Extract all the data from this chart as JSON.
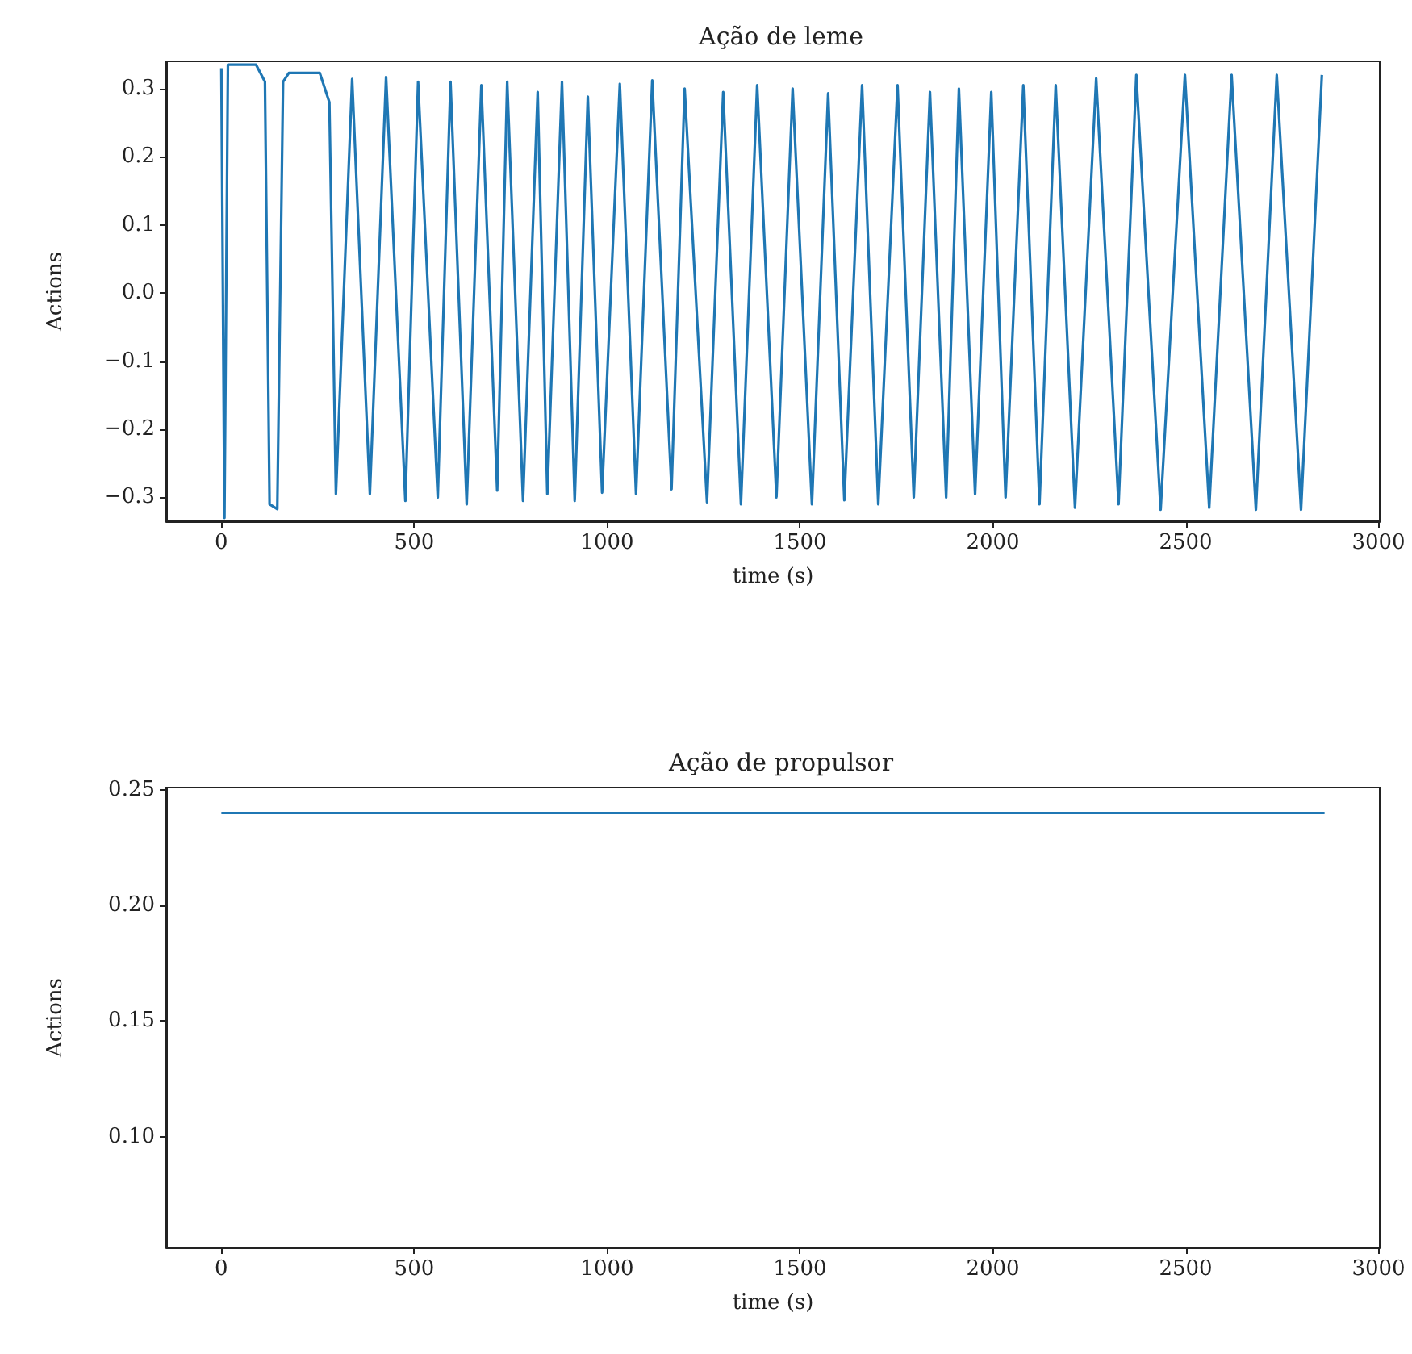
{
  "chart_data": [
    {
      "type": "line",
      "title": "Ação de leme",
      "xlabel": "time (s)",
      "ylabel": "Actions",
      "xlim": [
        -143,
        3003
      ],
      "ylim": [
        -0.335,
        0.34
      ],
      "xticks": [
        0,
        500,
        1000,
        1500,
        2000,
        2500,
        3000
      ],
      "yticks": [
        {
          "value": -0.3,
          "label": "−0.3"
        },
        {
          "value": -0.2,
          "label": "−0.2"
        },
        {
          "value": -0.1,
          "label": "−0.1"
        },
        {
          "value": 0,
          "label": "0.0"
        },
        {
          "value": 0.1,
          "label": "0.1"
        },
        {
          "value": 0.2,
          "label": "0.2"
        },
        {
          "value": 0.3,
          "label": "0.3"
        }
      ],
      "series": [
        {
          "color": "#1f77b4",
          "x": [
            0,
            8,
            17,
            90,
            113,
            125,
            145,
            160,
            175,
            255,
            280,
            297,
            339,
            385,
            427,
            477,
            510,
            561,
            594,
            636,
            674,
            715,
            741,
            782,
            820,
            845,
            883,
            916,
            950,
            987,
            1033,
            1075,
            1117,
            1167,
            1201,
            1259,
            1301,
            1347,
            1389,
            1439,
            1481,
            1531,
            1573,
            1615,
            1661,
            1703,
            1753,
            1795,
            1837,
            1879,
            1912,
            1954,
            1996,
            2033,
            2079,
            2121,
            2163,
            2213,
            2268,
            2326,
            2372,
            2435,
            2498,
            2561,
            2619,
            2682,
            2736,
            2799,
            2853
          ],
          "values": [
            0.33,
            -0.33,
            0.335,
            0.335,
            0.31,
            -0.31,
            -0.317,
            0.31,
            0.323,
            0.323,
            0.28,
            -0.295,
            0.314,
            -0.295,
            0.317,
            -0.305,
            0.31,
            -0.3,
            0.31,
            -0.31,
            0.305,
            -0.29,
            0.31,
            -0.305,
            0.295,
            -0.295,
            0.31,
            -0.305,
            0.288,
            -0.293,
            0.307,
            -0.295,
            0.312,
            -0.288,
            0.3,
            -0.307,
            0.295,
            -0.31,
            0.305,
            -0.3,
            0.3,
            -0.31,
            0.293,
            -0.304,
            0.305,
            -0.31,
            0.305,
            -0.3,
            0.295,
            -0.3,
            0.3,
            -0.295,
            0.295,
            -0.3,
            0.305,
            -0.31,
            0.305,
            -0.315,
            0.315,
            -0.31,
            0.32,
            -0.318,
            0.32,
            -0.315,
            0.32,
            -0.318,
            0.32,
            -0.318,
            0.32
          ]
        }
      ]
    },
    {
      "type": "line",
      "title": "Ação de propulsor",
      "xlabel": "time (s)",
      "ylabel": "Actions",
      "xlim": [
        -143,
        3003
      ],
      "ylim": [
        0.052,
        0.251
      ],
      "xticks": [
        0,
        500,
        1000,
        1500,
        2000,
        2500,
        3000
      ],
      "yticks": [
        {
          "value": 0.1,
          "label": "0.10"
        },
        {
          "value": 0.15,
          "label": "0.15"
        },
        {
          "value": 0.2,
          "label": "0.20"
        },
        {
          "value": 0.25,
          "label": "0.25"
        }
      ],
      "series": [
        {
          "color": "#1f77b4",
          "x": [
            0,
            2860
          ],
          "values": [
            0.24,
            0.24
          ]
        }
      ]
    }
  ]
}
